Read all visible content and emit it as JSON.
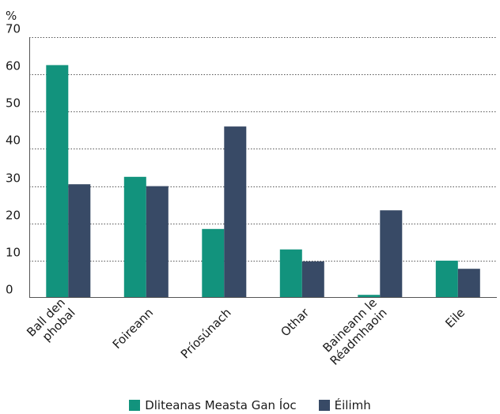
{
  "chart_data": {
    "type": "bar",
    "ylabel": "%",
    "ylim": [
      0,
      70
    ],
    "yticks": [
      0,
      10,
      20,
      30,
      40,
      50,
      60,
      70
    ],
    "grid": "dotted horizontal",
    "legend_position": "bottom",
    "categories": [
      [
        "Ball den",
        "phobal"
      ],
      [
        "Foireann"
      ],
      [
        "Príosúnach"
      ],
      [
        "Othar"
      ],
      [
        "Baineann le",
        "Réadmhaoin"
      ],
      [
        "Eile"
      ]
    ],
    "series": [
      {
        "name": "Dliteanas Measta Gan Íoc",
        "color": "#12937d",
        "values": [
          62.5,
          32.5,
          18.5,
          13,
          0.8,
          10
        ]
      },
      {
        "name": "Éilimh",
        "color": "#384a66",
        "values": [
          30.5,
          30,
          46,
          9.8,
          23.5,
          7.8
        ]
      }
    ]
  }
}
